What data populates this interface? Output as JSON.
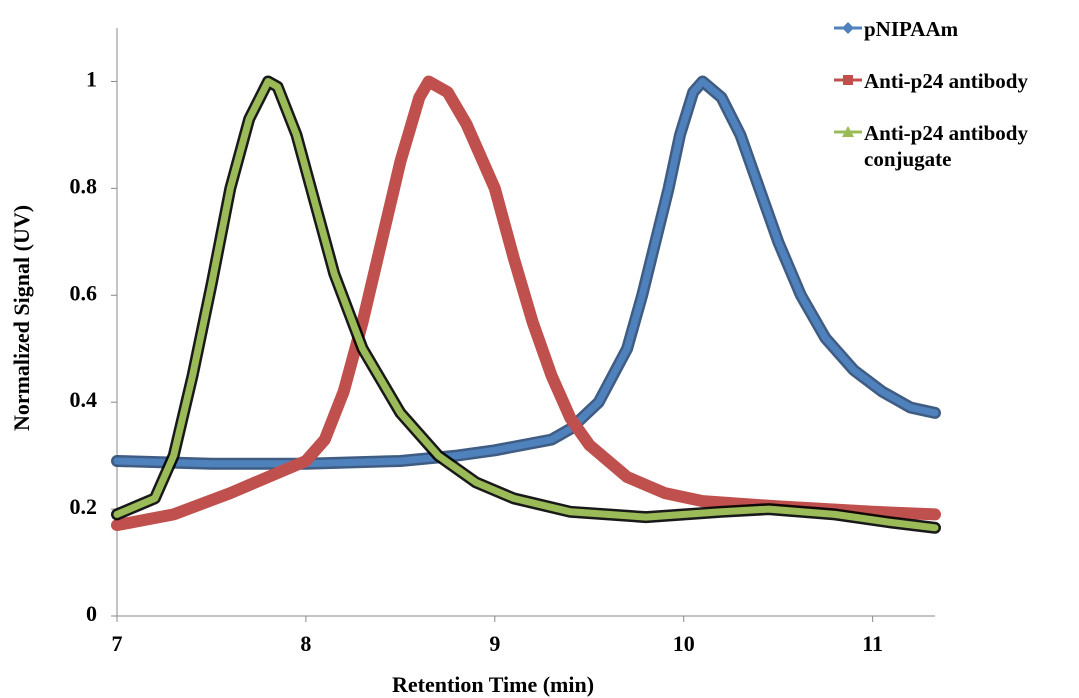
{
  "chart_data": {
    "type": "line",
    "x_label": "Retention Time (min)",
    "y_label": "Normalized Signal (UV)",
    "xlim": [
      7,
      11.33
    ],
    "ylim": [
      0,
      1.1
    ],
    "xticks": [
      7,
      8,
      9,
      10,
      11
    ],
    "yticks": [
      0,
      0.2,
      0.4,
      0.6,
      0.8,
      1
    ],
    "series": [
      {
        "name": "pNIPAAm",
        "color": "#4f81bd",
        "x": [
          7,
          7.5,
          8,
          8.5,
          8.8,
          9,
          9.3,
          9.4,
          9.55,
          9.7,
          9.78,
          9.85,
          9.92,
          9.98,
          10.05,
          10.1,
          10.2,
          10.3,
          10.4,
          10.5,
          10.62,
          10.75,
          10.9,
          11.05,
          11.2,
          11.33
        ],
        "values": [
          0.29,
          0.285,
          0.285,
          0.29,
          0.3,
          0.31,
          0.33,
          0.35,
          0.4,
          0.5,
          0.6,
          0.7,
          0.8,
          0.9,
          0.98,
          1.0,
          0.97,
          0.9,
          0.8,
          0.7,
          0.6,
          0.52,
          0.46,
          0.42,
          0.39,
          0.38
        ]
      },
      {
        "name": "Anti-p24 antibody",
        "color": "#c0504d",
        "x": [
          7,
          7.3,
          7.6,
          7.8,
          8.0,
          8.1,
          8.2,
          8.3,
          8.4,
          8.5,
          8.6,
          8.65,
          8.75,
          8.85,
          9.0,
          9.1,
          9.2,
          9.3,
          9.4,
          9.5,
          9.7,
          9.9,
          10.1,
          10.5,
          11.0,
          11.33
        ],
        "values": [
          0.17,
          0.19,
          0.23,
          0.26,
          0.29,
          0.33,
          0.42,
          0.55,
          0.7,
          0.85,
          0.97,
          1.0,
          0.98,
          0.92,
          0.8,
          0.67,
          0.55,
          0.45,
          0.37,
          0.32,
          0.26,
          0.23,
          0.215,
          0.205,
          0.195,
          0.19
        ]
      },
      {
        "name": "Anti-p24 antibody conjugate",
        "color": "#9bbb59",
        "x": [
          7,
          7.2,
          7.3,
          7.4,
          7.5,
          7.6,
          7.7,
          7.8,
          7.85,
          7.95,
          8.05,
          8.15,
          8.3,
          8.5,
          8.7,
          8.9,
          9.1,
          9.4,
          9.8,
          10.2,
          10.45,
          10.8,
          11.1,
          11.33
        ],
        "values": [
          0.19,
          0.22,
          0.3,
          0.45,
          0.62,
          0.8,
          0.93,
          1.0,
          0.99,
          0.9,
          0.77,
          0.64,
          0.5,
          0.38,
          0.3,
          0.25,
          0.22,
          0.195,
          0.185,
          0.195,
          0.2,
          0.19,
          0.175,
          0.165
        ]
      }
    ]
  }
}
